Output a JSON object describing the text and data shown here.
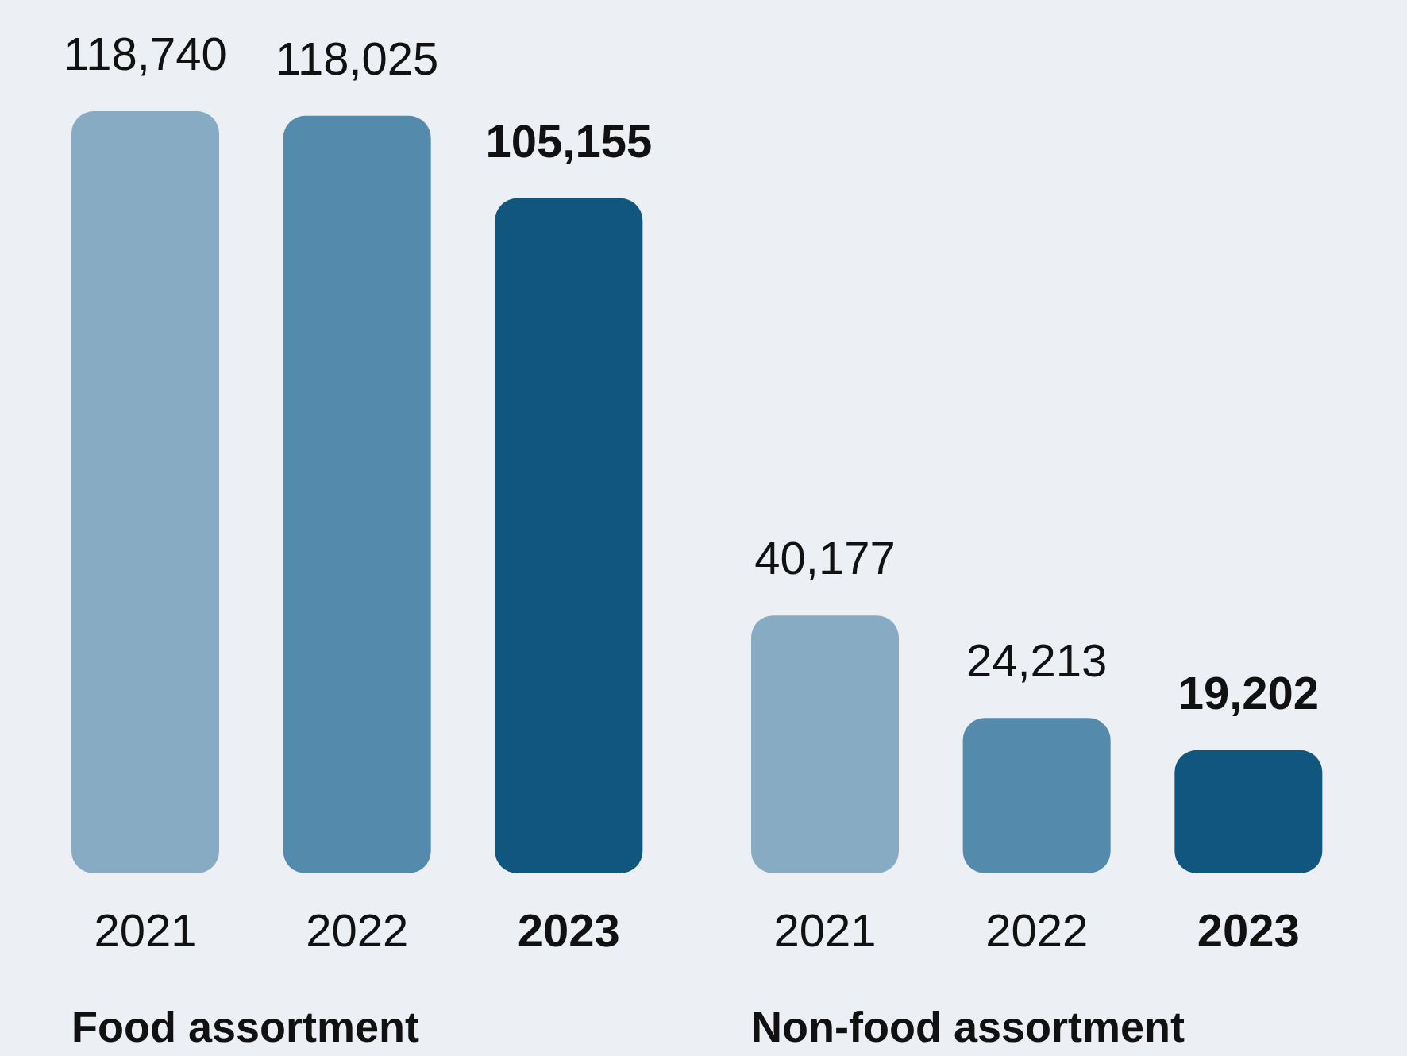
{
  "chart_data": {
    "type": "bar",
    "categories": [
      "Food assortment",
      "Non-food assortment"
    ],
    "series": [
      {
        "name": "2021",
        "color": "#88abc4",
        "values": [
          118740,
          40177
        ],
        "value_labels": [
          "118,740",
          "40,177"
        ]
      },
      {
        "name": "2022",
        "color": "#548aab",
        "values": [
          118025,
          24213
        ],
        "value_labels": [
          "118,025",
          "24,213"
        ]
      },
      {
        "name": "2023",
        "color": "#11567f",
        "values": [
          105155,
          19202
        ],
        "value_labels": [
          "105,155",
          "19,202"
        ]
      }
    ],
    "legend": false
  }
}
